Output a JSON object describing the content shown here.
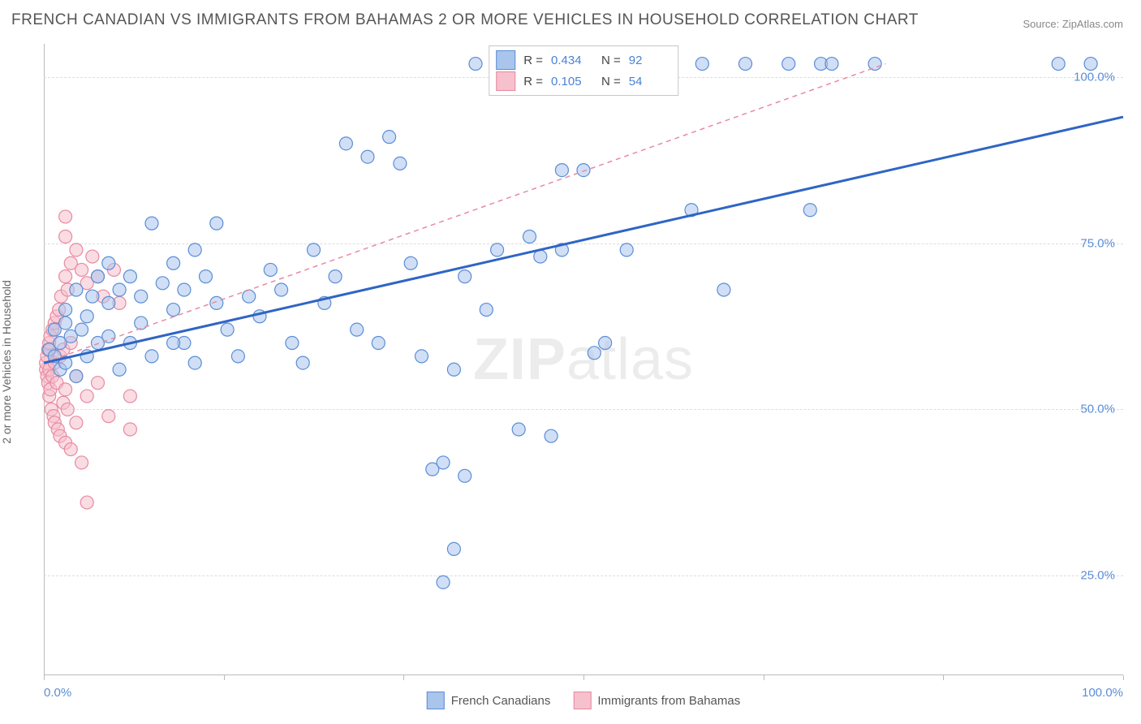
{
  "title": "FRENCH CANADIAN VS IMMIGRANTS FROM BAHAMAS 2 OR MORE VEHICLES IN HOUSEHOLD CORRELATION CHART",
  "source": "Source: ZipAtlas.com",
  "watermark_prefix": "ZIP",
  "watermark_suffix": "atlas",
  "y_axis_label": "2 or more Vehicles in Household",
  "xlim": [
    0,
    100
  ],
  "ylim": [
    10,
    105
  ],
  "y_grid": [
    25,
    50,
    75,
    100
  ],
  "y_tick_labels": [
    "25.0%",
    "50.0%",
    "75.0%",
    "100.0%"
  ],
  "y_tick_color": "#5b8dd6",
  "x_tick_positions": [
    0,
    16.67,
    33.33,
    50,
    66.67,
    83.33,
    100
  ],
  "x_tick_labels_left": "0.0%",
  "x_tick_labels_right": "100.0%",
  "x_tick_color": "#5b8dd6",
  "grid_color": "#dddddd",
  "border_color": "#bbbbbb",
  "background_color": "#ffffff",
  "legend_top": [
    {
      "swatch_fill": "#a9c5ec",
      "swatch_border": "#5b8dd6",
      "r_label": "R =",
      "r_value": "0.434",
      "n_label": "N =",
      "n_value": "92"
    },
    {
      "swatch_fill": "#f6c0cc",
      "swatch_border": "#e78aa2",
      "r_label": "R =",
      "r_value": "0.105",
      "n_label": "N =",
      "n_value": "54"
    }
  ],
  "legend_bottom": [
    {
      "swatch_fill": "#a9c5ec",
      "swatch_border": "#5b8dd6",
      "label": "French Canadians"
    },
    {
      "swatch_fill": "#f6c0cc",
      "swatch_border": "#e78aa2",
      "label": "Immigrants from Bahamas"
    }
  ],
  "series": {
    "blue": {
      "marker_fill": "#a9c5ec",
      "marker_stroke": "#5b8dd6",
      "marker_fill_opacity": 0.55,
      "marker_radius": 8,
      "trend_color": "#2f65c4",
      "trend_width": 3,
      "trend_dash": "none",
      "trend": {
        "x1": 0,
        "y1": 57,
        "x2": 100,
        "y2": 94
      },
      "points": [
        [
          0.5,
          59
        ],
        [
          1,
          58
        ],
        [
          1,
          62
        ],
        [
          1.5,
          60
        ],
        [
          1.5,
          56
        ],
        [
          2,
          63
        ],
        [
          2,
          57
        ],
        [
          2,
          65
        ],
        [
          2.5,
          61
        ],
        [
          3,
          68
        ],
        [
          3,
          55
        ],
        [
          3.5,
          62
        ],
        [
          4,
          64
        ],
        [
          4,
          58
        ],
        [
          4.5,
          67
        ],
        [
          5,
          60
        ],
        [
          5,
          70
        ],
        [
          6,
          61
        ],
        [
          6,
          66
        ],
        [
          6,
          72
        ],
        [
          7,
          68
        ],
        [
          7,
          56
        ],
        [
          8,
          70
        ],
        [
          8,
          60
        ],
        [
          9,
          63
        ],
        [
          9,
          67
        ],
        [
          10,
          78
        ],
        [
          10,
          58
        ],
        [
          11,
          69
        ],
        [
          12,
          65
        ],
        [
          12,
          72
        ],
        [
          13,
          68
        ],
        [
          13,
          60
        ],
        [
          14,
          74
        ],
        [
          14,
          57
        ],
        [
          15,
          70
        ],
        [
          16,
          66
        ],
        [
          16,
          78
        ],
        [
          17,
          62
        ],
        [
          18,
          58
        ],
        [
          19,
          67
        ],
        [
          20,
          64
        ],
        [
          21,
          71
        ],
        [
          22,
          68
        ],
        [
          23,
          60
        ],
        [
          24,
          57
        ],
        [
          25,
          74
        ],
        [
          26,
          66
        ],
        [
          27,
          70
        ],
        [
          28,
          90
        ],
        [
          29,
          62
        ],
        [
          30,
          88
        ],
        [
          31,
          60
        ],
        [
          32,
          91
        ],
        [
          33,
          87
        ],
        [
          34,
          72
        ],
        [
          35,
          58
        ],
        [
          36,
          41
        ],
        [
          37,
          42
        ],
        [
          37,
          24
        ],
        [
          38,
          56
        ],
        [
          38,
          29
        ],
        [
          39,
          70
        ],
        [
          39,
          40
        ],
        [
          40,
          102
        ],
        [
          41,
          65
        ],
        [
          42,
          74
        ],
        [
          43,
          102
        ],
        [
          44,
          47
        ],
        [
          45,
          76
        ],
        [
          46,
          73
        ],
        [
          47,
          46
        ],
        [
          48,
          74
        ],
        [
          50,
          86
        ],
        [
          51,
          58.5
        ],
        [
          52,
          60
        ],
        [
          56,
          102
        ],
        [
          58,
          102
        ],
        [
          60,
          80
        ],
        [
          61,
          102
        ],
        [
          63,
          68
        ],
        [
          65,
          102
        ],
        [
          69,
          102
        ],
        [
          72,
          102
        ],
        [
          73,
          102
        ],
        [
          77,
          102
        ],
        [
          94,
          102
        ],
        [
          97,
          102
        ],
        [
          71,
          80
        ],
        [
          48,
          86
        ],
        [
          12,
          60
        ],
        [
          54,
          74
        ]
      ]
    },
    "pink": {
      "marker_fill": "#f6c0cc",
      "marker_stroke": "#e78aa2",
      "marker_fill_opacity": 0.55,
      "marker_radius": 8,
      "trend_color": "#e78aa2",
      "trend_width": 1.5,
      "trend_dash": "6 5",
      "trend": {
        "x1": 0,
        "y1": 57,
        "x2": 78,
        "y2": 102
      },
      "points": [
        [
          0.2,
          56
        ],
        [
          0.2,
          57
        ],
        [
          0.3,
          55
        ],
        [
          0.3,
          58
        ],
        [
          0.4,
          54
        ],
        [
          0.4,
          59
        ],
        [
          0.5,
          52
        ],
        [
          0.5,
          60
        ],
        [
          0.5,
          56
        ],
        [
          0.6,
          53
        ],
        [
          0.6,
          61
        ],
        [
          0.7,
          50
        ],
        [
          0.8,
          62
        ],
        [
          0.8,
          55
        ],
        [
          0.9,
          49
        ],
        [
          1,
          63
        ],
        [
          1,
          57
        ],
        [
          1,
          48
        ],
        [
          1.2,
          64
        ],
        [
          1.2,
          54
        ],
        [
          1.3,
          47
        ],
        [
          1.4,
          65
        ],
        [
          1.5,
          58
        ],
        [
          1.5,
          46
        ],
        [
          1.6,
          67
        ],
        [
          1.8,
          51
        ],
        [
          1.8,
          59
        ],
        [
          2,
          70
        ],
        [
          2,
          53
        ],
        [
          2,
          45
        ],
        [
          2,
          76
        ],
        [
          2,
          79
        ],
        [
          2.2,
          68
        ],
        [
          2.2,
          50
        ],
        [
          2.5,
          72
        ],
        [
          2.5,
          60
        ],
        [
          2.5,
          44
        ],
        [
          3,
          74
        ],
        [
          3,
          55
        ],
        [
          3,
          48
        ],
        [
          3.5,
          71
        ],
        [
          3.5,
          42
        ],
        [
          4,
          69
        ],
        [
          4,
          52
        ],
        [
          4,
          36
        ],
        [
          4.5,
          73
        ],
        [
          5,
          70
        ],
        [
          5,
          54
        ],
        [
          5.5,
          67
        ],
        [
          6,
          49
        ],
        [
          6.5,
          71
        ],
        [
          7,
          66
        ],
        [
          8,
          47
        ],
        [
          8,
          52
        ]
      ]
    }
  }
}
